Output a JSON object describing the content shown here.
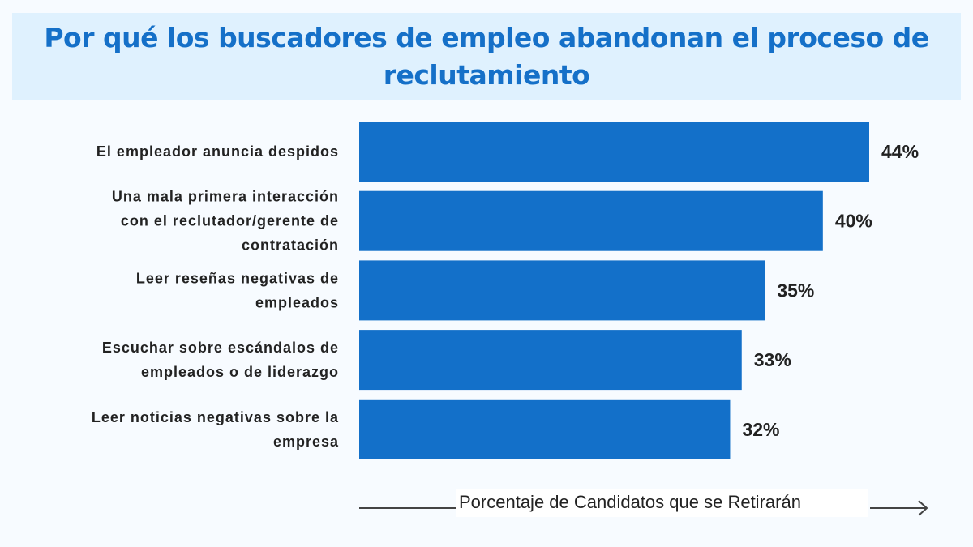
{
  "chart_data": {
    "type": "bar",
    "orientation": "horizontal",
    "title": "Por qué los buscadores de empleo abandonan el proceso de reclutamiento",
    "xlabel": "Porcentaje de Candidatos que se Retirarán",
    "categories": [
      "El empleador anuncia despidos",
      "Una mala primera interacción con el reclutador/gerente de contratación",
      "Leer reseñas negativas de empleados",
      "Escuchar sobre escándalos de empleados o de liderazgo",
      "Leer noticias negativas sobre la empresa"
    ],
    "category_lines": [
      [
        "El empleador anuncia despidos"
      ],
      [
        "Una mala primera interacción",
        "con el reclutador/gerente de",
        "contratación"
      ],
      [
        "Leer reseñas negativas de",
        "empleados"
      ],
      [
        "Escuchar sobre escándalos de",
        "empleados o de liderazgo"
      ],
      [
        "Leer noticias negativas sobre la",
        "empresa"
      ]
    ],
    "values": [
      44,
      40,
      35,
      33,
      32
    ],
    "data_labels": [
      "44%",
      "40%",
      "35%",
      "33%",
      "32%"
    ],
    "xlim": [
      0,
      44
    ],
    "grid": false,
    "colors": {
      "bar": "#1370c9",
      "title": "#1570c8",
      "title_band": "#dff1fe",
      "background": "#f7fbff"
    }
  }
}
